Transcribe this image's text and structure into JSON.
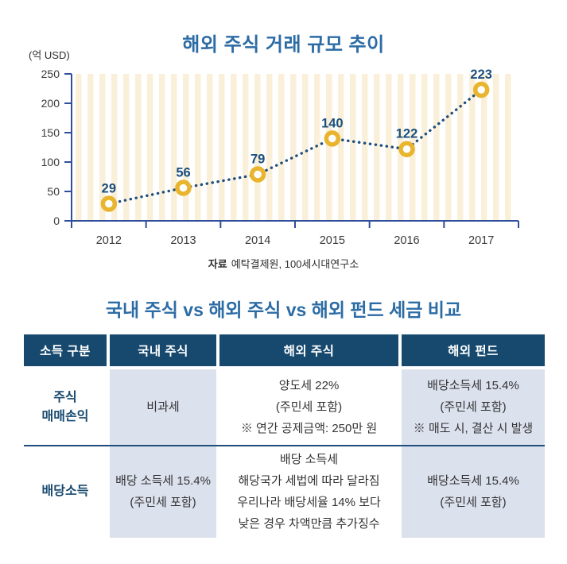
{
  "chart": {
    "title": "해외 주식 거래 규모 추이",
    "unit_label": "(억 USD)",
    "source_prefix": "자료",
    "source_text": "예탁결제원, 100세시대연구소"
  },
  "chart_data": {
    "type": "line",
    "categories": [
      "2012",
      "2013",
      "2014",
      "2015",
      "2016",
      "2017"
    ],
    "values": [
      29,
      56,
      79,
      140,
      122,
      223
    ],
    "title": "해외 주식 거래 규모 추이",
    "xlabel": "",
    "ylabel": "(억 USD)",
    "ylim": [
      0,
      250
    ],
    "yticks": [
      0,
      50,
      100,
      150,
      200,
      250
    ],
    "line_style": "dotted",
    "marker": "ring",
    "grid": "vertical-stripes",
    "legend": "none"
  },
  "colors": {
    "title_blue": "#2c6ca5",
    "axis_blue": "#2f4f9d",
    "dot_line_navy": "#1f4e7c",
    "label_navy": "#1b4f7e",
    "marker_gold": "#e9b52f",
    "stripe_cream": "#faf0da",
    "header_navy": "#17496e",
    "lavender": "#dce1ee"
  },
  "table": {
    "title": "국내 주식 vs 해외 주식 vs 해외 펀드 세금 비교",
    "headers": [
      "소득 구분",
      "국내 주식",
      "해외 주식",
      "해외 펀드"
    ],
    "rows": [
      {
        "label": "주식\n매매손익",
        "cells": [
          "비과세",
          "양도세 22%\n(주민세 포함)\n※ 연간 공제금액: 250만 원",
          "배당소득세 15.4%\n(주민세 포함)\n※ 매도 시, 결산 시 발생"
        ]
      },
      {
        "label": "배당소득",
        "cells": [
          "배당 소득세 15.4%\n(주민세 포함)",
          "배당 소득세\n해당국가 세법에 따라 달라짐\n우리나라 배당세율 14% 보다\n낮은 경우 차액만큼 추가징수",
          "배당소득세 15.4%\n(주민세 포함)"
        ]
      }
    ]
  }
}
